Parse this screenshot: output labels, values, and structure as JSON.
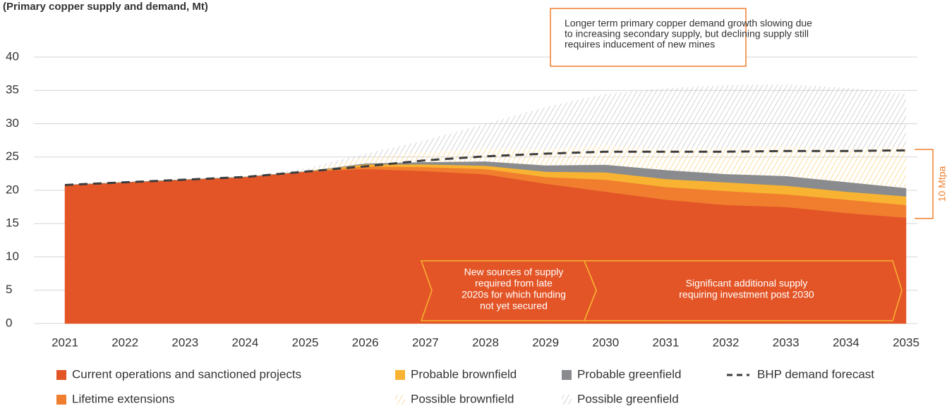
{
  "chart_data": {
    "type": "area",
    "subtitle": "(Primary copper supply and demand, Mt)",
    "categories": [
      "2021",
      "2022",
      "2023",
      "2024",
      "2025",
      "2026",
      "2027",
      "2028",
      "2029",
      "2030",
      "2031",
      "2032",
      "2033",
      "2034",
      "2035"
    ],
    "ylim": [
      0,
      40
    ],
    "yticks": [
      0,
      5,
      10,
      15,
      20,
      25,
      30,
      35,
      40
    ],
    "grid": true,
    "stacked": true,
    "series": [
      {
        "name": "Current operations and sanctioned projects",
        "color": "#e35526",
        "values": [
          20.8,
          21.2,
          21.6,
          22.0,
          22.8,
          23.2,
          22.9,
          22.4,
          21.0,
          19.8,
          18.6,
          17.8,
          17.5,
          16.6,
          15.9
        ]
      },
      {
        "name": "Lifetime extensions",
        "color": "#f07e2e",
        "values": [
          0,
          0,
          0,
          0,
          0,
          0.4,
          0.6,
          0.8,
          1.0,
          1.8,
          1.9,
          2.1,
          1.9,
          2.0,
          1.9
        ]
      },
      {
        "name": "Probable brownfield",
        "color": "#f8b332",
        "values": [
          0,
          0,
          0,
          0,
          0,
          0.3,
          0.4,
          0.5,
          0.8,
          1.1,
          1.2,
          1.3,
          1.3,
          1.2,
          1.3
        ]
      },
      {
        "name": "Probable greenfield",
        "color": "#898b8e",
        "values": [
          0,
          0,
          0,
          0,
          0,
          0.1,
          0.3,
          0.6,
          0.9,
          1.1,
          1.3,
          1.2,
          1.4,
          1.4,
          1.2
        ]
      },
      {
        "name": "Possible brownfield",
        "color": "#f8c766",
        "hatch": true,
        "values": [
          0,
          0,
          0,
          0,
          0.2,
          1.0,
          1.5,
          2.0,
          2.5,
          3.0,
          3.2,
          4.0,
          4.5,
          5.0,
          6.3
        ]
      },
      {
        "name": "Possible greenfield",
        "color": "#b5b6b8",
        "hatch": true,
        "values": [
          0,
          0,
          0,
          0,
          0.3,
          0.5,
          1.8,
          3.7,
          6.3,
          7.7,
          9.1,
          9.4,
          9.3,
          9.2,
          7.9
        ]
      },
      {
        "name": "BHP demand forecast",
        "color": "#3d3d3d",
        "type": "line",
        "dashed": true,
        "stacked": false,
        "values": [
          20.8,
          21.2,
          21.6,
          22.0,
          22.8,
          23.6,
          24.5,
          25.1,
          25.5,
          25.8,
          25.8,
          25.8,
          25.9,
          25.9,
          26.0
        ]
      }
    ],
    "annotations": {
      "box": [
        "Longer term primary copper demand growth slowing due",
        "to increasing secondary supply, but declining supply still",
        "requires inducement of new mines"
      ],
      "bracket": "10 Mtpa",
      "arrow1": [
        "New sources of supply",
        "required from late",
        "2020s for which funding",
        "not yet secured"
      ],
      "arrow2": [
        "Significant additional supply",
        "requiring investment post 2030"
      ]
    }
  }
}
